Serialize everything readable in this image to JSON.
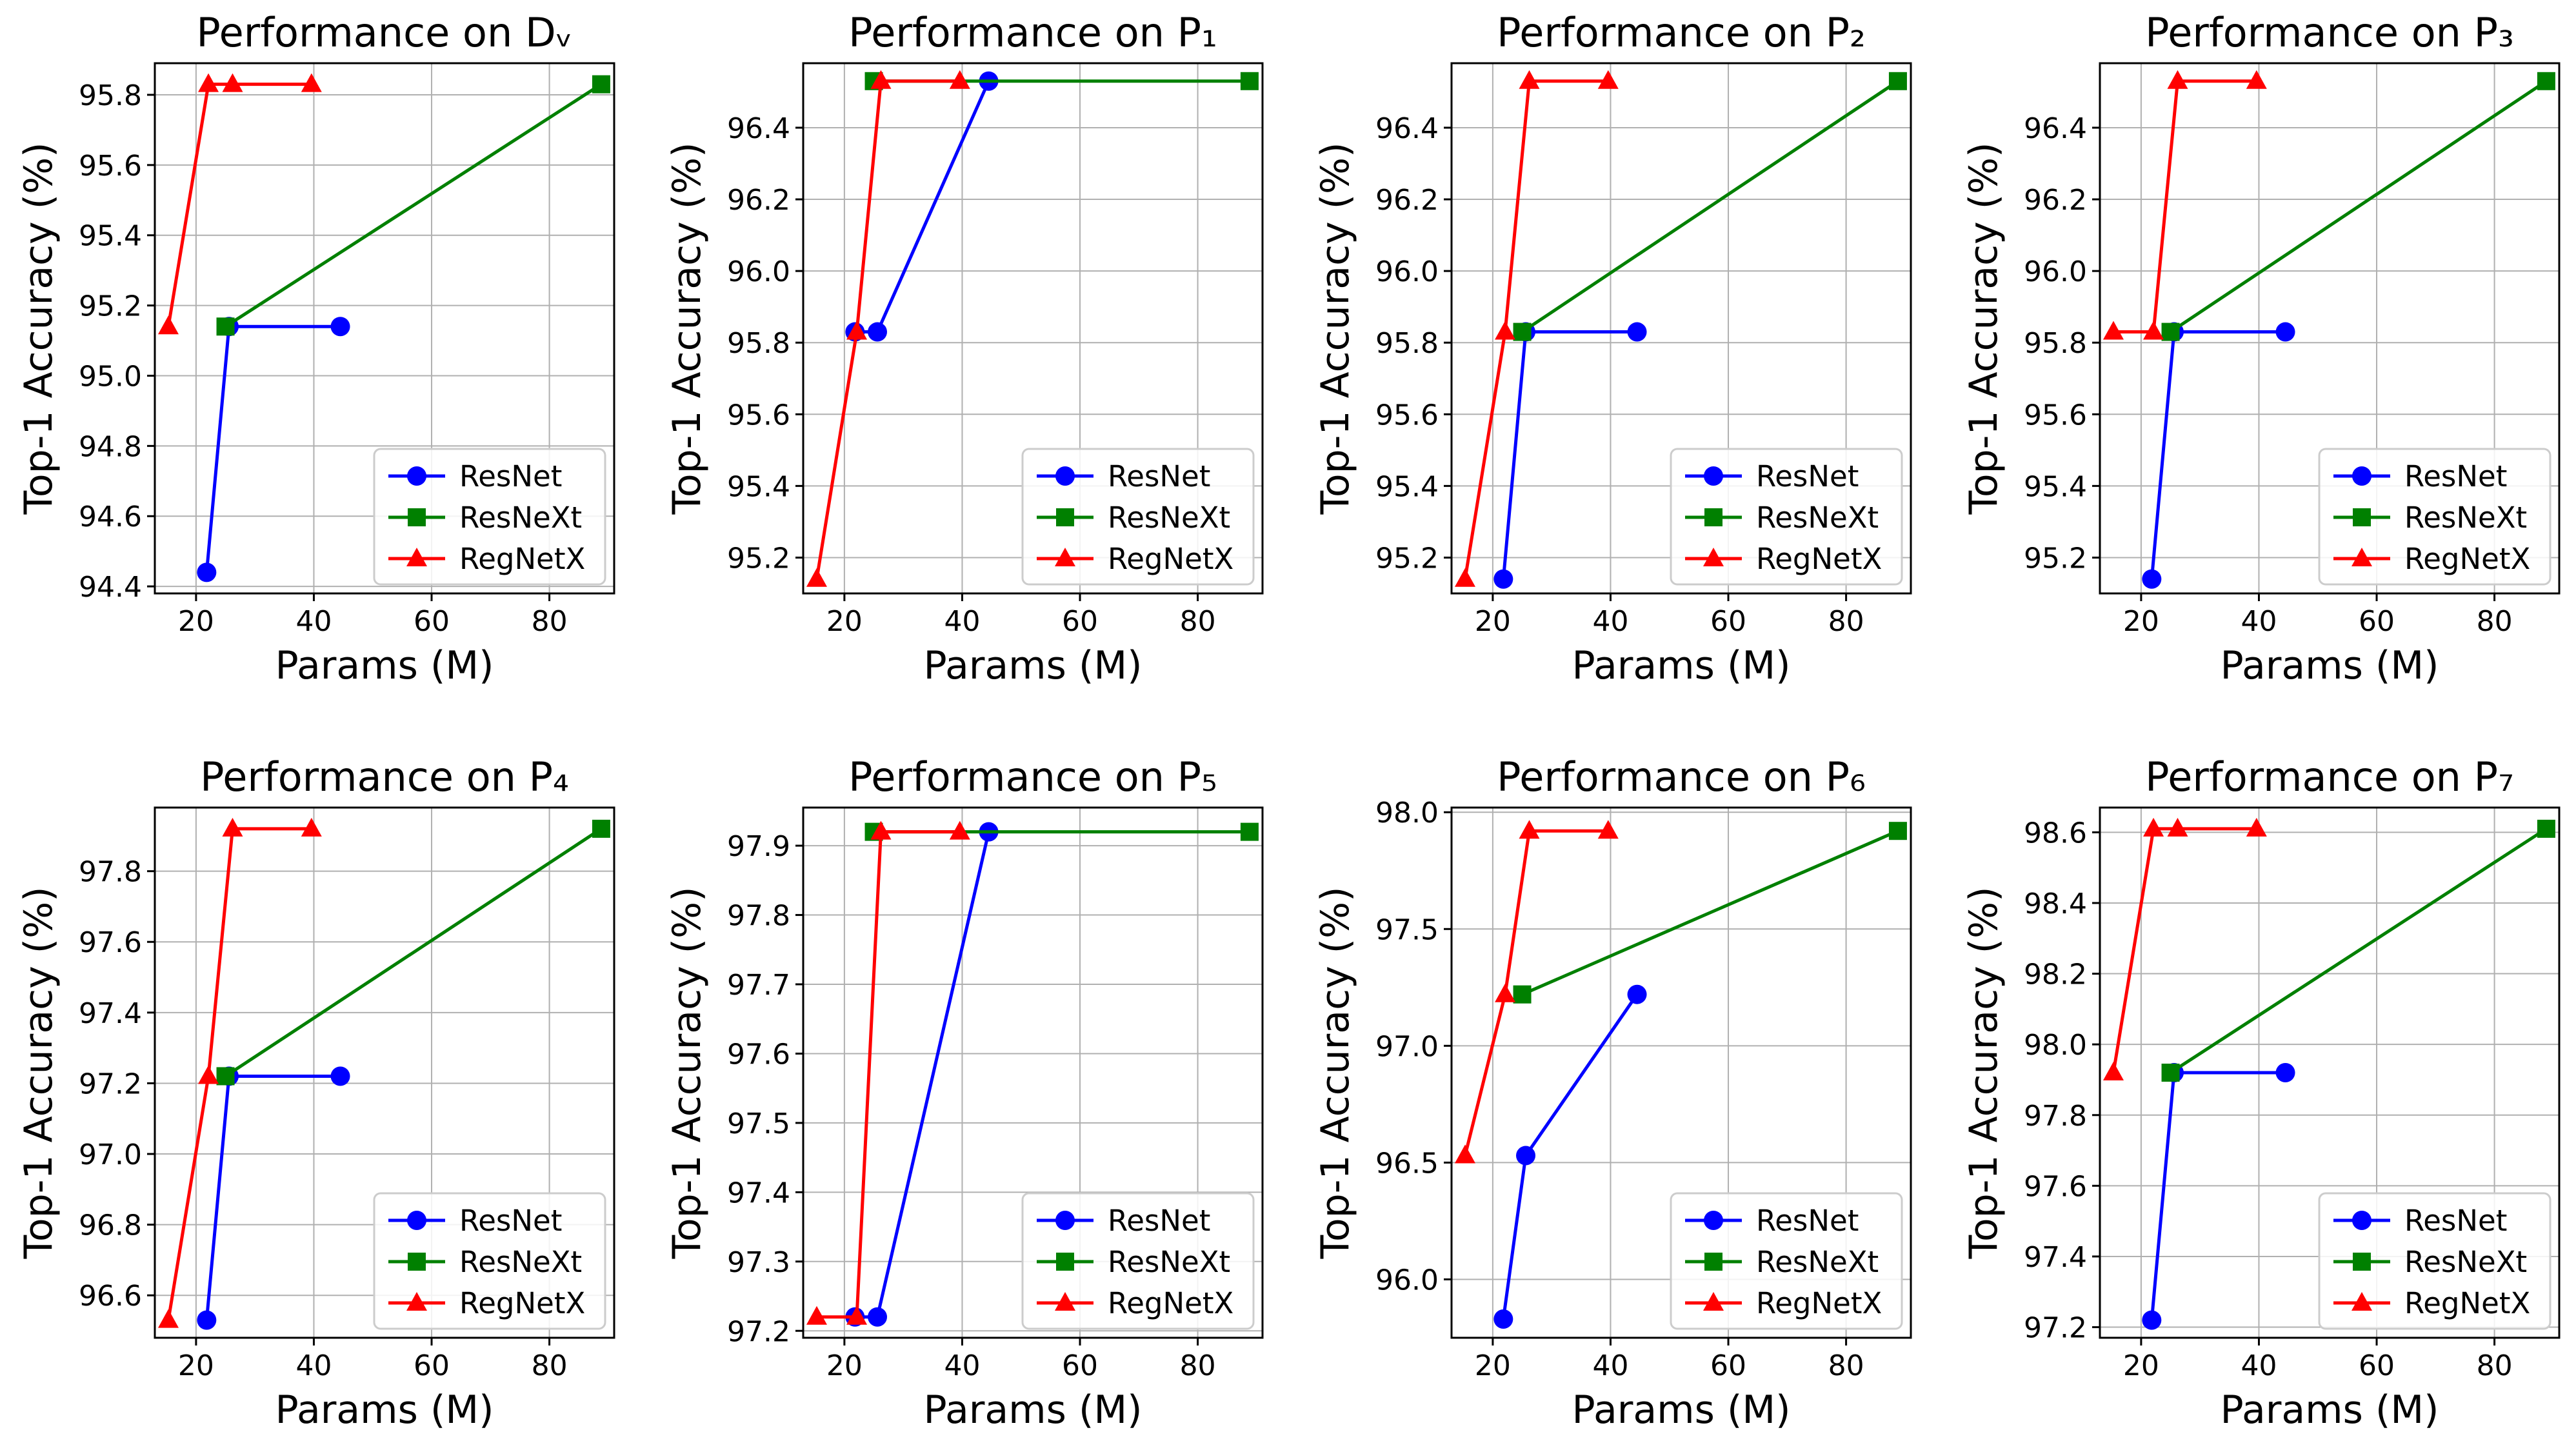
{
  "figure": {
    "colors": {
      "ResNet": "#0000ff",
      "ResNeXt": "#008000",
      "RegNetX": "#ff0000"
    },
    "markers": {
      "ResNet": "circle",
      "ResNeXt": "square",
      "RegNetX": "triangle"
    }
  },
  "chart_data": [
    {
      "type": "line",
      "title": "Performance on Dᵥ",
      "xlabel": "Params (M)",
      "ylabel": "Top-1 Accuracy (%)",
      "xlim": [
        13,
        91
      ],
      "ylim": [
        94.38,
        95.89
      ],
      "xticks": [
        20,
        40,
        60,
        80
      ],
      "xtick_labels": [
        "20",
        "40",
        "60",
        "80"
      ],
      "yticks": [
        94.4,
        94.6,
        94.8,
        95.0,
        95.2,
        95.4,
        95.6,
        95.8
      ],
      "ytick_labels": [
        "94.4",
        "94.6",
        "94.8",
        "95.0",
        "95.2",
        "95.4",
        "95.6",
        "95.8"
      ],
      "legend_position": "lower-right",
      "series": [
        {
          "name": "ResNet",
          "x": [
            21.8,
            25.6,
            44.5
          ],
          "y": [
            94.44,
            95.14,
            95.14
          ]
        },
        {
          "name": "ResNeXt",
          "x": [
            25.0,
            88.8
          ],
          "y": [
            95.14,
            95.83
          ]
        },
        {
          "name": "RegNetX",
          "x": [
            15.3,
            22.1,
            26.2,
            39.6
          ],
          "y": [
            95.14,
            95.83,
            95.83,
            95.83
          ]
        }
      ]
    },
    {
      "type": "line",
      "title": "Performance on P₁",
      "xlabel": "Params (M)",
      "ylabel": "Top-1 Accuracy (%)",
      "xlim": [
        13,
        91
      ],
      "ylim": [
        95.1,
        96.58
      ],
      "xticks": [
        20,
        40,
        60,
        80
      ],
      "xtick_labels": [
        "20",
        "40",
        "60",
        "80"
      ],
      "yticks": [
        95.2,
        95.4,
        95.6,
        95.8,
        96.0,
        96.2,
        96.4
      ],
      "ytick_labels": [
        "95.2",
        "95.4",
        "95.6",
        "95.8",
        "96.0",
        "96.2",
        "96.4"
      ],
      "legend_position": "lower-right",
      "series": [
        {
          "name": "ResNet",
          "x": [
            21.8,
            25.6,
            44.5
          ],
          "y": [
            95.83,
            95.83,
            96.53
          ]
        },
        {
          "name": "ResNeXt",
          "x": [
            25.0,
            88.8
          ],
          "y": [
            96.53,
            96.53
          ]
        },
        {
          "name": "RegNetX",
          "x": [
            15.3,
            22.1,
            26.2,
            39.6
          ],
          "y": [
            95.14,
            95.83,
            96.53,
            96.53
          ]
        }
      ]
    },
    {
      "type": "line",
      "title": "Performance on P₂",
      "xlabel": "Params (M)",
      "ylabel": "Top-1 Accuracy (%)",
      "xlim": [
        13,
        91
      ],
      "ylim": [
        95.1,
        96.58
      ],
      "xticks": [
        20,
        40,
        60,
        80
      ],
      "xtick_labels": [
        "20",
        "40",
        "60",
        "80"
      ],
      "yticks": [
        95.2,
        95.4,
        95.6,
        95.8,
        96.0,
        96.2,
        96.4
      ],
      "ytick_labels": [
        "95.2",
        "95.4",
        "95.6",
        "95.8",
        "96.0",
        "96.2",
        "96.4"
      ],
      "legend_position": "lower-right",
      "series": [
        {
          "name": "ResNet",
          "x": [
            21.8,
            25.6,
            44.5
          ],
          "y": [
            95.14,
            95.83,
            95.83
          ]
        },
        {
          "name": "ResNeXt",
          "x": [
            25.0,
            88.8
          ],
          "y": [
            95.83,
            96.53
          ]
        },
        {
          "name": "RegNetX",
          "x": [
            15.3,
            22.1,
            26.2,
            39.6
          ],
          "y": [
            95.14,
            95.83,
            96.53,
            96.53
          ]
        }
      ]
    },
    {
      "type": "line",
      "title": "Performance on P₃",
      "xlabel": "Params (M)",
      "ylabel": "Top-1 Accuracy (%)",
      "xlim": [
        13,
        91
      ],
      "ylim": [
        95.1,
        96.58
      ],
      "xticks": [
        20,
        40,
        60,
        80
      ],
      "xtick_labels": [
        "20",
        "40",
        "60",
        "80"
      ],
      "yticks": [
        95.2,
        95.4,
        95.6,
        95.8,
        96.0,
        96.2,
        96.4
      ],
      "ytick_labels": [
        "95.2",
        "95.4",
        "95.6",
        "95.8",
        "96.0",
        "96.2",
        "96.4"
      ],
      "legend_position": "lower-right",
      "series": [
        {
          "name": "ResNet",
          "x": [
            21.8,
            25.6,
            44.5
          ],
          "y": [
            95.14,
            95.83,
            95.83
          ]
        },
        {
          "name": "ResNeXt",
          "x": [
            25.0,
            88.8
          ],
          "y": [
            95.83,
            96.53
          ]
        },
        {
          "name": "RegNetX",
          "x": [
            15.3,
            22.1,
            26.2,
            39.6
          ],
          "y": [
            95.83,
            95.83,
            96.53,
            96.53
          ]
        }
      ]
    },
    {
      "type": "line",
      "title": "Performance on P₄",
      "xlabel": "Params (M)",
      "ylabel": "Top-1 Accuracy (%)",
      "xlim": [
        13,
        91
      ],
      "ylim": [
        96.48,
        97.98
      ],
      "xticks": [
        20,
        40,
        60,
        80
      ],
      "xtick_labels": [
        "20",
        "40",
        "60",
        "80"
      ],
      "yticks": [
        96.6,
        96.8,
        97.0,
        97.2,
        97.4,
        97.6,
        97.8
      ],
      "ytick_labels": [
        "96.6",
        "96.8",
        "97.0",
        "97.2",
        "97.4",
        "97.6",
        "97.8"
      ],
      "legend_position": "lower-right",
      "series": [
        {
          "name": "ResNet",
          "x": [
            21.8,
            25.6,
            44.5
          ],
          "y": [
            96.53,
            97.22,
            97.22
          ]
        },
        {
          "name": "ResNeXt",
          "x": [
            25.0,
            88.8
          ],
          "y": [
            97.22,
            97.92
          ]
        },
        {
          "name": "RegNetX",
          "x": [
            15.3,
            22.1,
            26.2,
            39.6
          ],
          "y": [
            96.53,
            97.22,
            97.92,
            97.92
          ]
        }
      ]
    },
    {
      "type": "line",
      "title": "Performance on P₅",
      "xlabel": "Params (M)",
      "ylabel": "Top-1 Accuracy (%)",
      "xlim": [
        13,
        91
      ],
      "ylim": [
        97.19,
        97.955
      ],
      "xticks": [
        20,
        40,
        60,
        80
      ],
      "xtick_labels": [
        "20",
        "40",
        "60",
        "80"
      ],
      "yticks": [
        97.2,
        97.3,
        97.4,
        97.5,
        97.6,
        97.7,
        97.8,
        97.9
      ],
      "ytick_labels": [
        "97.2",
        "97.3",
        "97.4",
        "97.5",
        "97.6",
        "97.7",
        "97.8",
        "97.9"
      ],
      "legend_position": "lower-right",
      "series": [
        {
          "name": "ResNet",
          "x": [
            21.8,
            25.6,
            44.5
          ],
          "y": [
            97.22,
            97.22,
            97.92
          ]
        },
        {
          "name": "ResNeXt",
          "x": [
            25.0,
            88.8
          ],
          "y": [
            97.92,
            97.92
          ]
        },
        {
          "name": "RegNetX",
          "x": [
            15.3,
            22.1,
            26.2,
            39.6
          ],
          "y": [
            97.22,
            97.22,
            97.92,
            97.92
          ]
        }
      ]
    },
    {
      "type": "line",
      "title": "Performance on P₆",
      "xlabel": "Params (M)",
      "ylabel": "Top-1 Accuracy (%)",
      "xlim": [
        13,
        91
      ],
      "ylim": [
        95.75,
        98.02
      ],
      "xticks": [
        20,
        40,
        60,
        80
      ],
      "xtick_labels": [
        "20",
        "40",
        "60",
        "80"
      ],
      "yticks": [
        96.0,
        96.5,
        97.0,
        97.5,
        98.0
      ],
      "ytick_labels": [
        "96.0",
        "96.5",
        "97.0",
        "97.5",
        "98.0"
      ],
      "legend_position": "lower-right",
      "series": [
        {
          "name": "ResNet",
          "x": [
            21.8,
            25.6,
            44.5
          ],
          "y": [
            95.83,
            96.53,
            97.22
          ]
        },
        {
          "name": "ResNeXt",
          "x": [
            25.0,
            88.8
          ],
          "y": [
            97.22,
            97.92
          ]
        },
        {
          "name": "RegNetX",
          "x": [
            15.3,
            22.1,
            26.2,
            39.6
          ],
          "y": [
            96.53,
            97.22,
            97.92,
            97.92
          ]
        }
      ]
    },
    {
      "type": "line",
      "title": "Performance on P₇",
      "xlabel": "Params (M)",
      "ylabel": "Top-1 Accuracy (%)",
      "xlim": [
        13,
        91
      ],
      "ylim": [
        97.17,
        98.67
      ],
      "xticks": [
        20,
        40,
        60,
        80
      ],
      "xtick_labels": [
        "20",
        "40",
        "60",
        "80"
      ],
      "yticks": [
        97.2,
        97.4,
        97.6,
        97.8,
        98.0,
        98.2,
        98.4,
        98.6
      ],
      "ytick_labels": [
        "97.2",
        "97.4",
        "97.6",
        "97.8",
        "98.0",
        "98.2",
        "98.4",
        "98.6"
      ],
      "legend_position": "lower-right",
      "series": [
        {
          "name": "ResNet",
          "x": [
            21.8,
            25.6,
            44.5
          ],
          "y": [
            97.22,
            97.92,
            97.92
          ]
        },
        {
          "name": "ResNeXt",
          "x": [
            25.0,
            88.8
          ],
          "y": [
            97.92,
            98.61
          ]
        },
        {
          "name": "RegNetX",
          "x": [
            15.3,
            22.1,
            26.2,
            39.6
          ],
          "y": [
            97.92,
            98.61,
            98.61,
            98.61
          ]
        }
      ]
    }
  ]
}
